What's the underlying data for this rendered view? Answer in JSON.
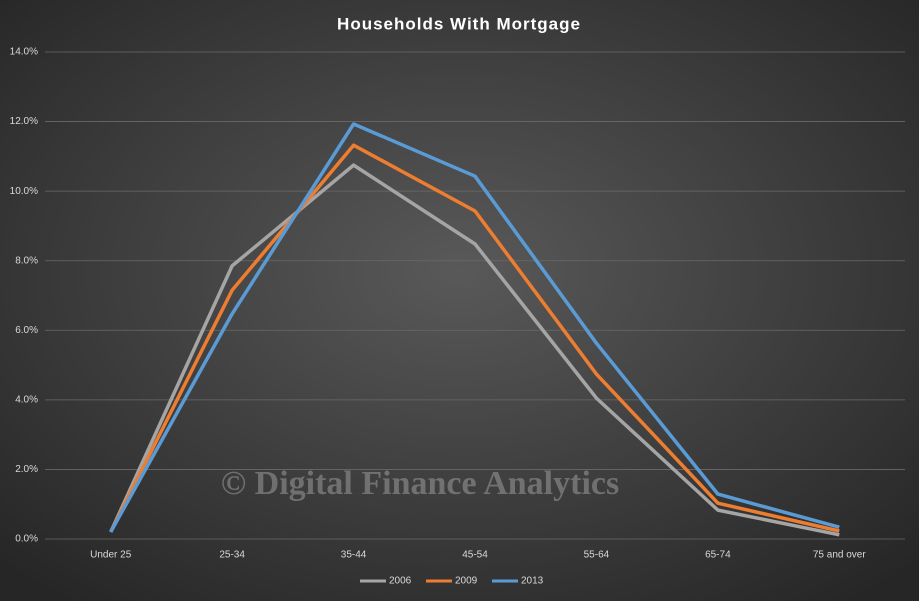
{
  "chart_data": {
    "type": "line",
    "title": "Households With Mortgage",
    "watermark": "© Digital Finance Analytics",
    "categories": [
      "Under 25",
      "25-34",
      "35-44",
      "45-54",
      "55-64",
      "65-74",
      "75 and over"
    ],
    "series": [
      {
        "name": "2006",
        "color": "#a5a5a5",
        "values": [
          0.2,
          7.85,
          10.75,
          8.48,
          4.05,
          0.83,
          0.12
        ]
      },
      {
        "name": "2009",
        "color": "#ed7d31",
        "values": [
          0.2,
          7.15,
          11.32,
          9.43,
          4.74,
          1.03,
          0.23
        ]
      },
      {
        "name": "2013",
        "color": "#5b9bd5",
        "values": [
          0.2,
          6.47,
          11.93,
          10.43,
          5.63,
          1.29,
          0.34
        ]
      }
    ],
    "ylim": [
      0,
      14
    ],
    "yticks": [
      {
        "value": 0,
        "label": "0.0%"
      },
      {
        "value": 2,
        "label": "2.0%"
      },
      {
        "value": 4,
        "label": "4.0%"
      },
      {
        "value": 6,
        "label": "6.0%"
      },
      {
        "value": 8,
        "label": "8.0%"
      },
      {
        "value": 10,
        "label": "10.0%"
      },
      {
        "value": 12,
        "label": "12.0%"
      },
      {
        "value": 14,
        "label": "14.0%"
      }
    ],
    "grid": true,
    "legend": "bottom"
  }
}
